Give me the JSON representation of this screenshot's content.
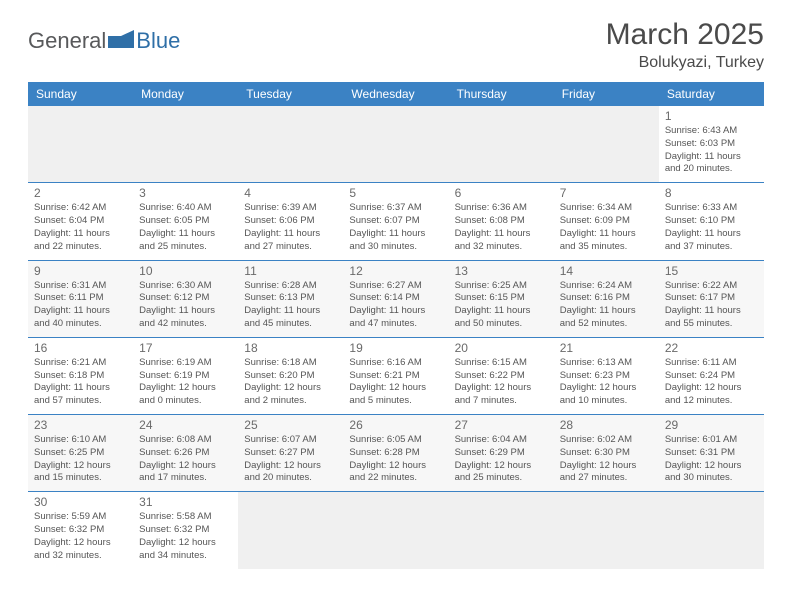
{
  "logo": {
    "text1": "General",
    "text2": "Blue"
  },
  "title": "March 2025",
  "location": "Bolukyazi, Turkey",
  "colors": {
    "header_bg": "#3b82c4",
    "header_text": "#ffffff",
    "border": "#3b82c4",
    "alt_row": "#f7f7f7",
    "logo_gray": "#58595b",
    "logo_blue": "#2f6fa7"
  },
  "weekdays": [
    "Sunday",
    "Monday",
    "Tuesday",
    "Wednesday",
    "Thursday",
    "Friday",
    "Saturday"
  ],
  "weeks": [
    [
      null,
      null,
      null,
      null,
      null,
      null,
      {
        "d": "1",
        "sr": "Sunrise: 6:43 AM",
        "ss": "Sunset: 6:03 PM",
        "dl1": "Daylight: 11 hours",
        "dl2": "and 20 minutes."
      }
    ],
    [
      {
        "d": "2",
        "sr": "Sunrise: 6:42 AM",
        "ss": "Sunset: 6:04 PM",
        "dl1": "Daylight: 11 hours",
        "dl2": "and 22 minutes."
      },
      {
        "d": "3",
        "sr": "Sunrise: 6:40 AM",
        "ss": "Sunset: 6:05 PM",
        "dl1": "Daylight: 11 hours",
        "dl2": "and 25 minutes."
      },
      {
        "d": "4",
        "sr": "Sunrise: 6:39 AM",
        "ss": "Sunset: 6:06 PM",
        "dl1": "Daylight: 11 hours",
        "dl2": "and 27 minutes."
      },
      {
        "d": "5",
        "sr": "Sunrise: 6:37 AM",
        "ss": "Sunset: 6:07 PM",
        "dl1": "Daylight: 11 hours",
        "dl2": "and 30 minutes."
      },
      {
        "d": "6",
        "sr": "Sunrise: 6:36 AM",
        "ss": "Sunset: 6:08 PM",
        "dl1": "Daylight: 11 hours",
        "dl2": "and 32 minutes."
      },
      {
        "d": "7",
        "sr": "Sunrise: 6:34 AM",
        "ss": "Sunset: 6:09 PM",
        "dl1": "Daylight: 11 hours",
        "dl2": "and 35 minutes."
      },
      {
        "d": "8",
        "sr": "Sunrise: 6:33 AM",
        "ss": "Sunset: 6:10 PM",
        "dl1": "Daylight: 11 hours",
        "dl2": "and 37 minutes."
      }
    ],
    [
      {
        "d": "9",
        "sr": "Sunrise: 6:31 AM",
        "ss": "Sunset: 6:11 PM",
        "dl1": "Daylight: 11 hours",
        "dl2": "and 40 minutes."
      },
      {
        "d": "10",
        "sr": "Sunrise: 6:30 AM",
        "ss": "Sunset: 6:12 PM",
        "dl1": "Daylight: 11 hours",
        "dl2": "and 42 minutes."
      },
      {
        "d": "11",
        "sr": "Sunrise: 6:28 AM",
        "ss": "Sunset: 6:13 PM",
        "dl1": "Daylight: 11 hours",
        "dl2": "and 45 minutes."
      },
      {
        "d": "12",
        "sr": "Sunrise: 6:27 AM",
        "ss": "Sunset: 6:14 PM",
        "dl1": "Daylight: 11 hours",
        "dl2": "and 47 minutes."
      },
      {
        "d": "13",
        "sr": "Sunrise: 6:25 AM",
        "ss": "Sunset: 6:15 PM",
        "dl1": "Daylight: 11 hours",
        "dl2": "and 50 minutes."
      },
      {
        "d": "14",
        "sr": "Sunrise: 6:24 AM",
        "ss": "Sunset: 6:16 PM",
        "dl1": "Daylight: 11 hours",
        "dl2": "and 52 minutes."
      },
      {
        "d": "15",
        "sr": "Sunrise: 6:22 AM",
        "ss": "Sunset: 6:17 PM",
        "dl1": "Daylight: 11 hours",
        "dl2": "and 55 minutes."
      }
    ],
    [
      {
        "d": "16",
        "sr": "Sunrise: 6:21 AM",
        "ss": "Sunset: 6:18 PM",
        "dl1": "Daylight: 11 hours",
        "dl2": "and 57 minutes."
      },
      {
        "d": "17",
        "sr": "Sunrise: 6:19 AM",
        "ss": "Sunset: 6:19 PM",
        "dl1": "Daylight: 12 hours",
        "dl2": "and 0 minutes."
      },
      {
        "d": "18",
        "sr": "Sunrise: 6:18 AM",
        "ss": "Sunset: 6:20 PM",
        "dl1": "Daylight: 12 hours",
        "dl2": "and 2 minutes."
      },
      {
        "d": "19",
        "sr": "Sunrise: 6:16 AM",
        "ss": "Sunset: 6:21 PM",
        "dl1": "Daylight: 12 hours",
        "dl2": "and 5 minutes."
      },
      {
        "d": "20",
        "sr": "Sunrise: 6:15 AM",
        "ss": "Sunset: 6:22 PM",
        "dl1": "Daylight: 12 hours",
        "dl2": "and 7 minutes."
      },
      {
        "d": "21",
        "sr": "Sunrise: 6:13 AM",
        "ss": "Sunset: 6:23 PM",
        "dl1": "Daylight: 12 hours",
        "dl2": "and 10 minutes."
      },
      {
        "d": "22",
        "sr": "Sunrise: 6:11 AM",
        "ss": "Sunset: 6:24 PM",
        "dl1": "Daylight: 12 hours",
        "dl2": "and 12 minutes."
      }
    ],
    [
      {
        "d": "23",
        "sr": "Sunrise: 6:10 AM",
        "ss": "Sunset: 6:25 PM",
        "dl1": "Daylight: 12 hours",
        "dl2": "and 15 minutes."
      },
      {
        "d": "24",
        "sr": "Sunrise: 6:08 AM",
        "ss": "Sunset: 6:26 PM",
        "dl1": "Daylight: 12 hours",
        "dl2": "and 17 minutes."
      },
      {
        "d": "25",
        "sr": "Sunrise: 6:07 AM",
        "ss": "Sunset: 6:27 PM",
        "dl1": "Daylight: 12 hours",
        "dl2": "and 20 minutes."
      },
      {
        "d": "26",
        "sr": "Sunrise: 6:05 AM",
        "ss": "Sunset: 6:28 PM",
        "dl1": "Daylight: 12 hours",
        "dl2": "and 22 minutes."
      },
      {
        "d": "27",
        "sr": "Sunrise: 6:04 AM",
        "ss": "Sunset: 6:29 PM",
        "dl1": "Daylight: 12 hours",
        "dl2": "and 25 minutes."
      },
      {
        "d": "28",
        "sr": "Sunrise: 6:02 AM",
        "ss": "Sunset: 6:30 PM",
        "dl1": "Daylight: 12 hours",
        "dl2": "and 27 minutes."
      },
      {
        "d": "29",
        "sr": "Sunrise: 6:01 AM",
        "ss": "Sunset: 6:31 PM",
        "dl1": "Daylight: 12 hours",
        "dl2": "and 30 minutes."
      }
    ],
    [
      {
        "d": "30",
        "sr": "Sunrise: 5:59 AM",
        "ss": "Sunset: 6:32 PM",
        "dl1": "Daylight: 12 hours",
        "dl2": "and 32 minutes."
      },
      {
        "d": "31",
        "sr": "Sunrise: 5:58 AM",
        "ss": "Sunset: 6:32 PM",
        "dl1": "Daylight: 12 hours",
        "dl2": "and 34 minutes."
      },
      null,
      null,
      null,
      null,
      null
    ]
  ]
}
